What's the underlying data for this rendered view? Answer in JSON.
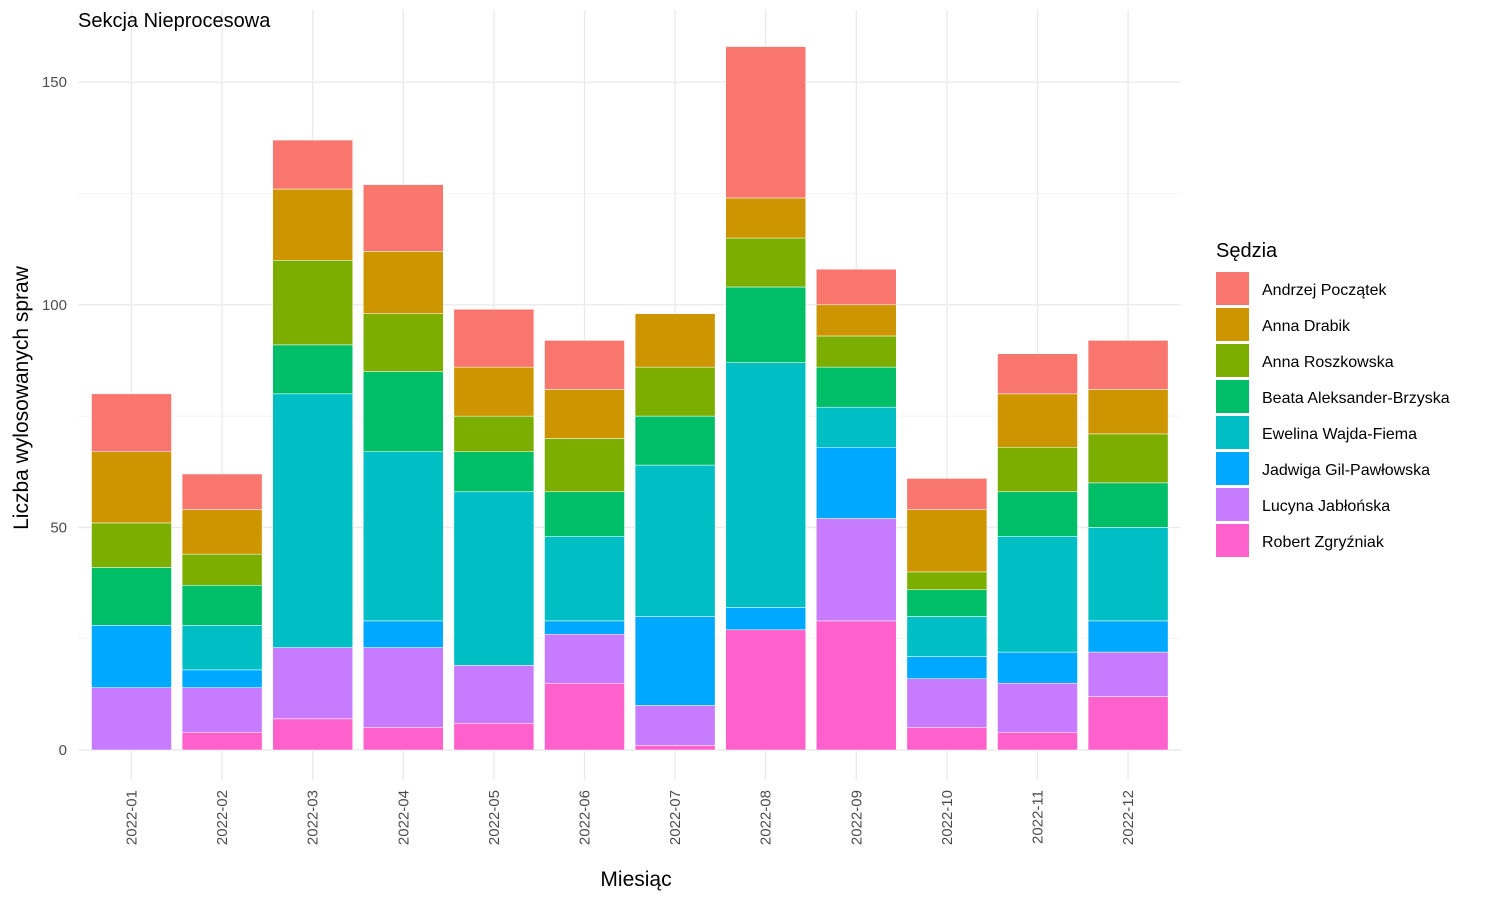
{
  "chart_data": {
    "type": "bar",
    "stacked": true,
    "title": "Sekcja Nieprocesowa",
    "xlabel": "Miesiąc",
    "ylabel": "Liczba wylosowanych spraw",
    "ylim": [
      0,
      160
    ],
    "yticks": [
      0,
      50,
      100,
      150
    ],
    "grid": true,
    "legend_title": "Sędzia",
    "legend_position": "right",
    "categories": [
      "2022-01",
      "2022-02",
      "2022-03",
      "2022-04",
      "2022-05",
      "2022-06",
      "2022-07",
      "2022-08",
      "2022-09",
      "2022-10",
      "2022-11",
      "2022-12"
    ],
    "series": [
      {
        "name": "Andrzej Początek",
        "color": "#F8766D",
        "values": [
          13,
          8,
          11,
          15,
          13,
          11,
          0,
          34,
          8,
          7,
          9,
          11
        ]
      },
      {
        "name": "Anna Drabik",
        "color": "#CD9600",
        "values": [
          16,
          10,
          16,
          14,
          11,
          11,
          12,
          9,
          7,
          14,
          12,
          10
        ]
      },
      {
        "name": "Anna Roszkowska",
        "color": "#7CAE00",
        "values": [
          10,
          7,
          19,
          13,
          8,
          12,
          11,
          11,
          7,
          4,
          10,
          11
        ]
      },
      {
        "name": "Beata Aleksander-Brzyska",
        "color": "#00BE67",
        "values": [
          13,
          9,
          11,
          18,
          9,
          10,
          11,
          17,
          9,
          6,
          10,
          10
        ]
      },
      {
        "name": "Ewelina Wajda-Fiema",
        "color": "#00BFC4",
        "values": [
          0,
          10,
          57,
          38,
          39,
          19,
          34,
          55,
          9,
          9,
          26,
          21
        ]
      },
      {
        "name": "Jadwiga Gil-Pawłowska",
        "color": "#00A9FF",
        "values": [
          14,
          4,
          0,
          6,
          0,
          3,
          20,
          5,
          16,
          5,
          7,
          7
        ]
      },
      {
        "name": "Lucyna Jabłońska",
        "color": "#C77CFF",
        "values": [
          14,
          10,
          16,
          18,
          13,
          11,
          9,
          0,
          23,
          11,
          11,
          10
        ]
      },
      {
        "name": "Robert Zgryźniak",
        "color": "#FF61CC",
        "values": [
          0,
          4,
          7,
          5,
          6,
          15,
          1,
          27,
          29,
          5,
          4,
          12
        ]
      }
    ]
  }
}
